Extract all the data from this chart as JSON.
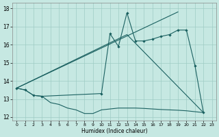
{
  "xlabel": "Humidex (Indice chaleur)",
  "xlim": [
    -0.5,
    23.5
  ],
  "ylim": [
    11.8,
    18.3
  ],
  "xticks": [
    0,
    1,
    2,
    3,
    4,
    5,
    6,
    7,
    8,
    9,
    10,
    11,
    12,
    13,
    14,
    15,
    16,
    17,
    18,
    19,
    20,
    21,
    22,
    23
  ],
  "yticks": [
    12,
    13,
    14,
    15,
    16,
    17,
    18
  ],
  "bg_color": "#c6e8e2",
  "grid_color": "#9eccc4",
  "line_color": "#1a6060",
  "series_marked": {
    "x": [
      0,
      1,
      2,
      3,
      10,
      11,
      12,
      13,
      14,
      15,
      16,
      17,
      18,
      19,
      20,
      21,
      22
    ],
    "y": [
      13.6,
      13.5,
      13.2,
      13.15,
      13.3,
      16.6,
      15.9,
      17.75,
      16.2,
      16.2,
      16.3,
      16.45,
      16.55,
      16.8,
      16.8,
      14.85,
      12.25
    ]
  },
  "series_line1": {
    "x": [
      0,
      19
    ],
    "y": [
      13.6,
      17.8
    ]
  },
  "series_line2": {
    "x": [
      0,
      13,
      22
    ],
    "y": [
      13.6,
      16.55,
      12.25
    ]
  },
  "series_bottom": {
    "x": [
      0,
      1,
      2,
      3,
      4,
      5,
      6,
      7,
      8,
      9,
      10,
      11,
      12,
      13,
      14,
      15,
      16,
      17,
      18,
      19,
      20,
      21,
      22
    ],
    "y": [
      13.6,
      13.5,
      13.2,
      13.15,
      12.8,
      12.7,
      12.5,
      12.4,
      12.2,
      12.2,
      12.4,
      12.45,
      12.5,
      12.5,
      12.5,
      12.48,
      12.45,
      12.42,
      12.4,
      12.38,
      12.35,
      12.3,
      12.25
    ]
  }
}
